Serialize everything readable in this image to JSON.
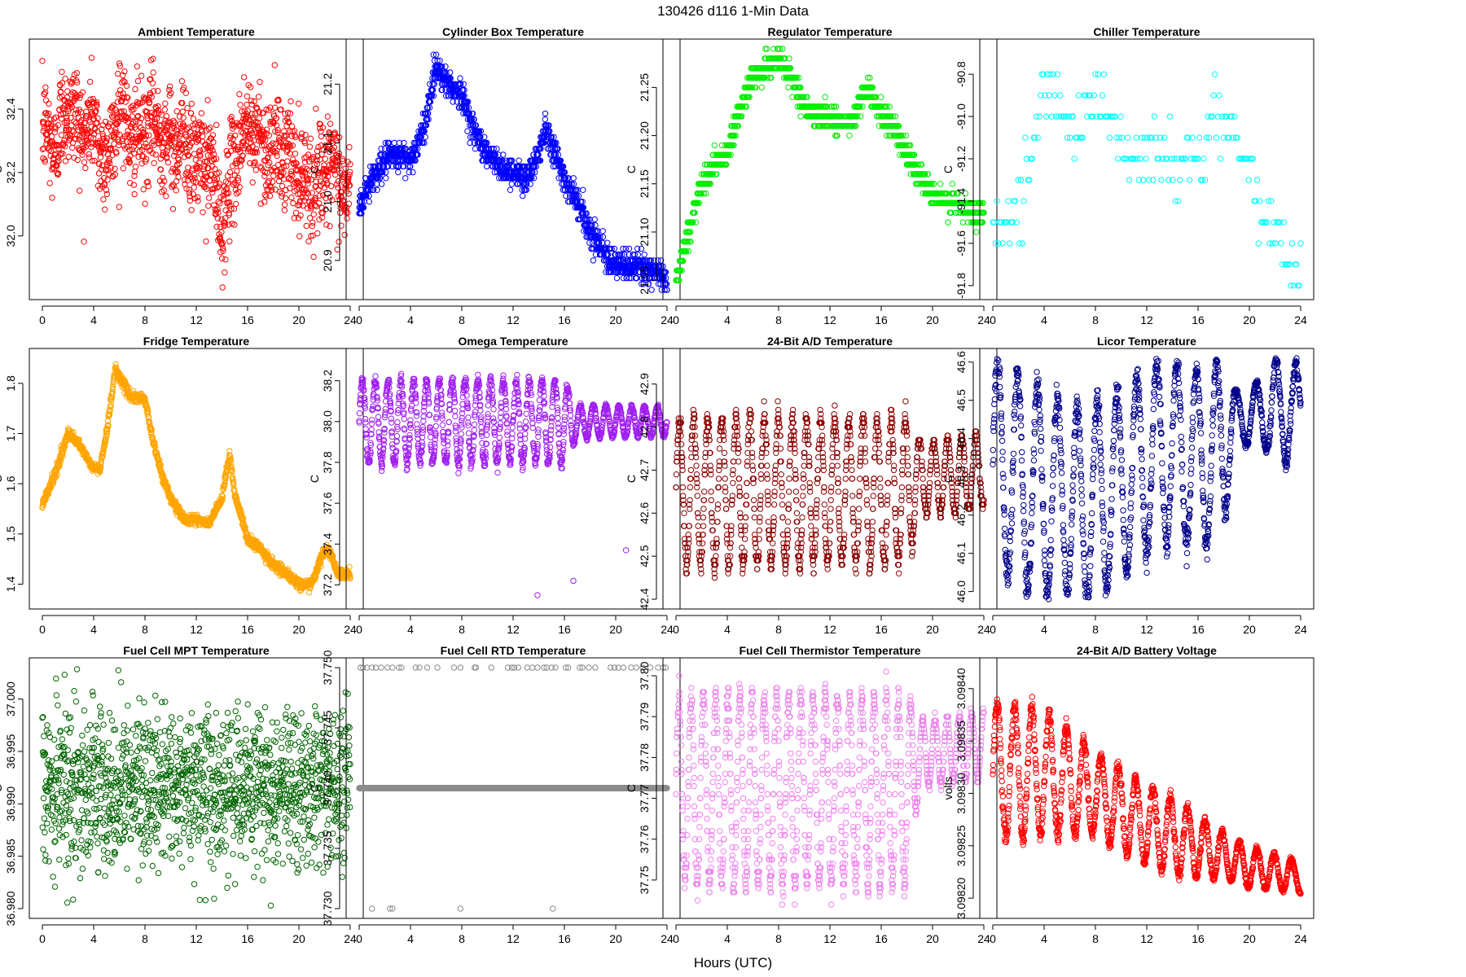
{
  "suptitle": "130426   d116   1-Min Data",
  "x_axis_label": "Hours (UTC)",
  "chart_data": [
    {
      "type": "scatter",
      "title": "Ambient Temperature",
      "ylabel": "C",
      "color": "#ff0000",
      "xlim": [
        0,
        24
      ],
      "xticks": [
        0,
        4,
        8,
        12,
        16,
        20,
        24
      ],
      "ylim": [
        31.83,
        32.59
      ],
      "yticks": [
        "32.0",
        "32.2",
        "32.4"
      ],
      "gen": "ambient",
      "profile": [
        [
          0,
          32.33
        ],
        [
          1,
          32.28
        ],
        [
          2,
          32.42
        ],
        [
          3,
          32.33
        ],
        [
          4,
          32.35
        ],
        [
          5,
          32.22
        ],
        [
          6,
          32.42
        ],
        [
          7,
          32.3
        ],
        [
          8,
          32.33
        ],
        [
          9,
          32.35
        ],
        [
          10,
          32.28
        ],
        [
          11,
          32.32
        ],
        [
          12,
          32.22
        ],
        [
          13,
          32.25
        ],
        [
          14,
          32.02
        ],
        [
          15,
          32.25
        ],
        [
          16,
          32.35
        ],
        [
          17,
          32.3
        ],
        [
          18,
          32.27
        ],
        [
          19,
          32.26
        ],
        [
          20,
          32.2
        ],
        [
          21,
          32.15
        ],
        [
          22,
          32.22
        ],
        [
          23,
          32.18
        ],
        [
          24,
          32.12
        ]
      ],
      "amp": 0.16,
      "n": 1440
    },
    {
      "type": "scatter",
      "title": "Cylinder Box Temperature",
      "ylabel": "C",
      "color": "#0000ff",
      "xlim": [
        0,
        24
      ],
      "xticks": [
        0,
        4,
        8,
        12,
        16,
        20,
        24
      ],
      "ylim": [
        20.85,
        21.26
      ],
      "yticks": [
        "20.9",
        "21.0",
        "21.1",
        "21.2"
      ],
      "gen": "step",
      "profile": [
        [
          0,
          20.99
        ],
        [
          1,
          21.04
        ],
        [
          2,
          21.07
        ],
        [
          3,
          21.08
        ],
        [
          4,
          21.07
        ],
        [
          5,
          21.12
        ],
        [
          6,
          21.23
        ],
        [
          7,
          21.2
        ],
        [
          8,
          21.18
        ],
        [
          9,
          21.12
        ],
        [
          10,
          21.08
        ],
        [
          11,
          21.06
        ],
        [
          12,
          21.05
        ],
        [
          13,
          21.04
        ],
        [
          14,
          21.08
        ],
        [
          14.5,
          21.13
        ],
        [
          15,
          21.1
        ],
        [
          16,
          21.04
        ],
        [
          17,
          21.0
        ],
        [
          18,
          20.95
        ],
        [
          19,
          20.92
        ],
        [
          20,
          20.89
        ],
        [
          21,
          20.89
        ],
        [
          22,
          20.89
        ],
        [
          23,
          20.88
        ],
        [
          24,
          20.87
        ]
      ],
      "step": 0.01,
      "amp": 0.012,
      "n": 1440
    },
    {
      "type": "scatter",
      "title": "Regulator Temperature",
      "ylabel": "C",
      "color": "#00ee00",
      "xlim": [
        0,
        24
      ],
      "xticks": [
        0,
        4,
        8,
        12,
        16,
        20,
        24
      ],
      "ylim": [
        21.04,
        21.29
      ],
      "yticks": [
        "21.05",
        "21.10",
        "21.15",
        "21.20",
        "21.25"
      ],
      "gen": "step",
      "profile": [
        [
          0,
          21.05
        ],
        [
          1,
          21.1
        ],
        [
          2,
          21.15
        ],
        [
          3,
          21.17
        ],
        [
          4,
          21.18
        ],
        [
          5,
          21.23
        ],
        [
          6,
          21.26
        ],
        [
          7,
          21.27
        ],
        [
          8,
          21.28
        ],
        [
          9,
          21.26
        ],
        [
          10,
          21.23
        ],
        [
          11,
          21.22
        ],
        [
          12,
          21.22
        ],
        [
          13,
          21.21
        ],
        [
          14,
          21.22
        ],
        [
          14.7,
          21.25
        ],
        [
          15,
          21.25
        ],
        [
          16,
          21.22
        ],
        [
          17,
          21.21
        ],
        [
          18,
          21.18
        ],
        [
          19,
          21.16
        ],
        [
          20,
          21.14
        ],
        [
          21,
          21.13
        ],
        [
          22,
          21.13
        ],
        [
          23,
          21.12
        ],
        [
          24,
          21.12
        ]
      ],
      "step": 0.01,
      "amp": 0.006,
      "n": 1440
    },
    {
      "type": "scatter",
      "title": "Chiller Temperature",
      "ylabel": "C",
      "color": "#00ffff",
      "xlim": [
        0,
        24
      ],
      "xticks": [
        0,
        4,
        8,
        12,
        16,
        20,
        24
      ],
      "ylim": [
        -91.82,
        -90.68
      ],
      "yticks": [
        "-91.8",
        "-91.6",
        "-91.4",
        "-91.2",
        "-91.0",
        "-90.8"
      ],
      "gen": "step",
      "profile": [
        [
          0,
          -91.5
        ],
        [
          1,
          -91.45
        ],
        [
          2,
          -91.4
        ],
        [
          3,
          -91.2
        ],
        [
          4,
          -90.85
        ],
        [
          5,
          -90.9
        ],
        [
          6,
          -91.0
        ],
        [
          7,
          -91.05
        ],
        [
          8,
          -90.85
        ],
        [
          9,
          -91.0
        ],
        [
          10,
          -91.1
        ],
        [
          11,
          -91.2
        ],
        [
          12,
          -91.15
        ],
        [
          13,
          -91.2
        ],
        [
          14,
          -91.2
        ],
        [
          15,
          -91.25
        ],
        [
          16,
          -91.2
        ],
        [
          17,
          -91.05
        ],
        [
          18,
          -91.0
        ],
        [
          19,
          -91.1
        ],
        [
          20,
          -91.3
        ],
        [
          21,
          -91.5
        ],
        [
          22,
          -91.55
        ],
        [
          23,
          -91.65
        ],
        [
          24,
          -91.75
        ]
      ],
      "step": 0.1,
      "amp": 0.09,
      "n": 220
    },
    {
      "type": "scatter",
      "title": "Fridge Temperature",
      "ylabel": "C",
      "color": "#ffa500",
      "xlim": [
        0,
        24
      ],
      "xticks": [
        0,
        4,
        8,
        12,
        16,
        20,
        24
      ],
      "ylim": [
        1.37,
        1.85
      ],
      "yticks": [
        "1.4",
        "1.5",
        "1.6",
        "1.7",
        "1.8"
      ],
      "gen": "smooth",
      "profile": [
        [
          0,
          1.56
        ],
        [
          1,
          1.62
        ],
        [
          2,
          1.7
        ],
        [
          2.8,
          1.68
        ],
        [
          3.5,
          1.65
        ],
        [
          4,
          1.63
        ],
        [
          4.5,
          1.63
        ],
        [
          5,
          1.7
        ],
        [
          5.7,
          1.83
        ],
        [
          6.3,
          1.8
        ],
        [
          7,
          1.77
        ],
        [
          8,
          1.77
        ],
        [
          8.5,
          1.7
        ],
        [
          9.3,
          1.62
        ],
        [
          10,
          1.57
        ],
        [
          11,
          1.53
        ],
        [
          12,
          1.53
        ],
        [
          13,
          1.52
        ],
        [
          14,
          1.57
        ],
        [
          14.6,
          1.66
        ],
        [
          15,
          1.58
        ],
        [
          16,
          1.49
        ],
        [
          17,
          1.47
        ],
        [
          18,
          1.44
        ],
        [
          19,
          1.42
        ],
        [
          20,
          1.4
        ],
        [
          21,
          1.4
        ],
        [
          22,
          1.47
        ],
        [
          22.5,
          1.46
        ],
        [
          23,
          1.42
        ],
        [
          24,
          1.42
        ]
      ],
      "amp": 0.012,
      "n": 1440
    },
    {
      "type": "scatter",
      "title": "Omega Temperature",
      "ylabel": "C",
      "color": "#a020f0",
      "xlim": [
        0,
        24
      ],
      "xticks": [
        0,
        4,
        8,
        12,
        16,
        20,
        24
      ],
      "ylim": [
        37.13,
        38.31
      ],
      "yticks": [
        "37.2",
        "37.4",
        "37.6",
        "37.8",
        "38.0",
        "38.2"
      ],
      "gen": "osc",
      "profile": [
        [
          0,
          38.0
        ],
        [
          24,
          38.0
        ]
      ],
      "amp": 0.2,
      "period": 1.0,
      "ampdecay": [
        [
          0,
          1.0
        ],
        [
          16,
          1.0
        ],
        [
          17,
          0.4
        ],
        [
          24,
          0.35
        ]
      ],
      "n": 1440,
      "outliers": [
        [
          13.9,
          37.15
        ],
        [
          16.7,
          37.22
        ],
        [
          20.8,
          37.37
        ]
      ]
    },
    {
      "type": "scatter",
      "title": "24-Bit A/D Temperature",
      "ylabel": "C",
      "color": "#8b0000",
      "xlim": [
        0,
        24
      ],
      "xticks": [
        0,
        4,
        8,
        12,
        16,
        20,
        24
      ],
      "ylim": [
        42.4,
        42.96
      ],
      "yticks": [
        "42.4",
        "42.5",
        "42.6",
        "42.7",
        "42.8",
        "42.9"
      ],
      "gen": "osc",
      "profile": [
        [
          0,
          42.65
        ],
        [
          18,
          42.65
        ],
        [
          19,
          42.68
        ],
        [
          24,
          42.7
        ]
      ],
      "amp": 0.17,
      "period": 1.1,
      "ampdecay": [
        [
          0,
          1.0
        ],
        [
          18,
          1.0
        ],
        [
          19,
          0.5
        ],
        [
          24,
          0.5
        ]
      ],
      "step": 0.01,
      "n": 1440
    },
    {
      "type": "scatter",
      "title": "Licor Temperature",
      "ylabel": "C",
      "color": "#00008b",
      "xlim": [
        0,
        24
      ],
      "xticks": [
        0,
        4,
        8,
        12,
        16,
        20,
        24
      ],
      "ylim": [
        45.98,
        46.61
      ],
      "yticks": [
        "46.0",
        "46.1",
        "46.2",
        "46.3",
        "46.4",
        "46.5",
        "46.6"
      ],
      "gen": "osc",
      "profile": [
        [
          0,
          46.35
        ],
        [
          3,
          46.27
        ],
        [
          7,
          46.22
        ],
        [
          10,
          46.28
        ],
        [
          13,
          46.37
        ],
        [
          17,
          46.35
        ],
        [
          18,
          46.4
        ],
        [
          19,
          46.45
        ],
        [
          21,
          46.47
        ],
        [
          24,
          46.47
        ]
      ],
      "amp": 0.28,
      "period": 1.55,
      "ampdecay": [
        [
          0,
          1.0
        ],
        [
          18,
          0.8
        ],
        [
          19,
          0.25
        ],
        [
          21,
          0.3
        ],
        [
          22,
          0.5
        ],
        [
          24,
          0.4
        ]
      ],
      "n": 1440
    },
    {
      "type": "scatter",
      "title": "Fuel Cell MPT Temperature",
      "ylabel": "C",
      "color": "#006400",
      "xlim": [
        0,
        24
      ],
      "xticks": [
        0,
        4,
        8,
        12,
        16,
        20,
        24
      ],
      "ylim": [
        36.98,
        37.003
      ],
      "yticks": [
        "36.980",
        "36.985",
        "36.990",
        "36.995",
        "37.000"
      ],
      "gen": "noise",
      "profile": [
        [
          0,
          36.9915
        ],
        [
          24,
          36.9915
        ]
      ],
      "amp": 0.0085,
      "n": 1440
    },
    {
      "type": "scatter",
      "title": "Fuel Cell RTD Temperature",
      "ylabel": "C",
      "color": "#8c8c8c",
      "xlim": [
        0,
        24
      ],
      "xticks": [
        0,
        4,
        8,
        12,
        16,
        20,
        24
      ],
      "ylim": [
        37.73,
        37.75
      ],
      "yticks": [
        "37.730",
        "37.735",
        "37.740",
        "37.745",
        "37.750"
      ],
      "gen": "flat",
      "profile": [
        [
          0,
          37.74
        ],
        [
          24,
          37.74
        ]
      ],
      "n": 1440,
      "hi_x": [
        0.1,
        0.3,
        0.6,
        1.0,
        1.3,
        1.7,
        2.2,
        2.6,
        3.1,
        3.3,
        4.4,
        4.7,
        5.3,
        6.1,
        7.4,
        7.9,
        9.0,
        9.1,
        10.3,
        11.6,
        11.9,
        12.1,
        12.4,
        13.1,
        13.5,
        13.9,
        14.4,
        14.6,
        15.0,
        15.3,
        16.1,
        16.3,
        17.2,
        17.4,
        17.9,
        18.4,
        19.6,
        19.9,
        20.2,
        20.6,
        21.2,
        21.6,
        22.1,
        22.7,
        23.3,
        23.7,
        23.9
      ],
      "lo_x": [
        1.0,
        2.4,
        2.6,
        7.9,
        15.1
      ],
      "hi_y": 37.75,
      "lo_y": 37.73
    },
    {
      "type": "scatter",
      "title": "Fuel Cell Thermistor Temperature",
      "ylabel": "C",
      "color": "#ee82ee",
      "xlim": [
        0,
        24
      ],
      "xticks": [
        0,
        4,
        8,
        12,
        16,
        20,
        24
      ],
      "ylim": [
        37.743,
        37.802
      ],
      "yticks": [
        "37.75",
        "37.76",
        "37.77",
        "37.78",
        "37.79",
        "37.80"
      ],
      "gen": "osc",
      "profile": [
        [
          0,
          37.772
        ],
        [
          18,
          37.772
        ],
        [
          19,
          37.781
        ],
        [
          24,
          37.783
        ]
      ],
      "amp": 0.023,
      "period": 0.95,
      "ampdecay": [
        [
          0,
          1.0
        ],
        [
          18,
          1.0
        ],
        [
          19,
          0.35
        ],
        [
          24,
          0.35
        ]
      ],
      "step": 0.001,
      "n": 1440
    },
    {
      "type": "scatter",
      "title": "24-Bit A/D Battery Voltage",
      "ylabel": "volts",
      "color": "#ff0000",
      "xlim": [
        0,
        24
      ],
      "xticks": [
        0,
        4,
        8,
        12,
        16,
        20,
        24
      ],
      "ylim": [
        3.09819,
        3.09842
      ],
      "yticks": [
        "3.09820",
        "3.09825",
        "3.09830",
        "3.09835",
        "3.09840"
      ],
      "gen": "osc",
      "profile": [
        [
          0,
          3.09832
        ],
        [
          4,
          3.09832
        ],
        [
          8,
          3.0983
        ],
        [
          12,
          3.09827
        ],
        [
          16,
          3.09825
        ],
        [
          20,
          3.09823
        ],
        [
          24,
          3.09822
        ]
      ],
      "amp": 4e-05,
      "period": 1.35,
      "ampdecay": [
        [
          0,
          1.6
        ],
        [
          4,
          1.5
        ],
        [
          8,
          1.0
        ],
        [
          14,
          0.9
        ],
        [
          18,
          0.55
        ],
        [
          24,
          0.35
        ]
      ],
      "n": 1440
    }
  ]
}
